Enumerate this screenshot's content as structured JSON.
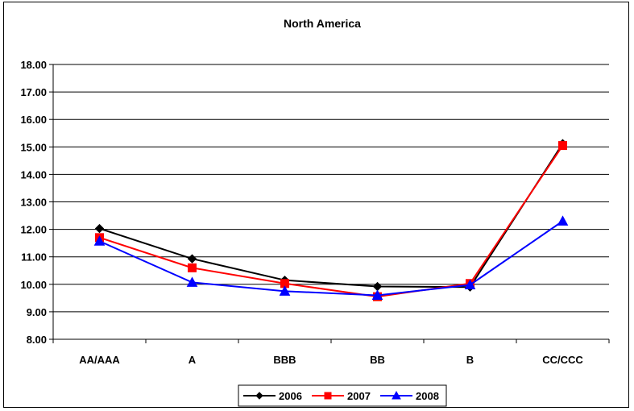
{
  "chart_data": {
    "type": "line",
    "title": "North America",
    "xlabel": "",
    "ylabel": "",
    "categories": [
      "AA/AAA",
      "A",
      "BBB",
      "BB",
      "B",
      "CC/CCC"
    ],
    "ylim": [
      8.0,
      18.0
    ],
    "ytick_step": 1.0,
    "ytick_labels": [
      "8.00",
      "9.00",
      "10.00",
      "11.00",
      "12.00",
      "13.00",
      "14.00",
      "15.00",
      "16.00",
      "17.00",
      "18.00"
    ],
    "grid": "horizontal",
    "legend_position": "bottom",
    "series": [
      {
        "name": "2006",
        "values": [
          12.03,
          10.93,
          10.15,
          9.92,
          9.9,
          15.12
        ],
        "color": "#000000",
        "marker": "diamond"
      },
      {
        "name": "2007",
        "values": [
          11.7,
          10.6,
          10.03,
          9.55,
          10.03,
          15.05
        ],
        "color": "#ff0000",
        "marker": "square"
      },
      {
        "name": "2008",
        "values": [
          11.57,
          10.07,
          9.75,
          9.6,
          9.98,
          12.3
        ],
        "color": "#0000ff",
        "marker": "triangle"
      }
    ]
  }
}
